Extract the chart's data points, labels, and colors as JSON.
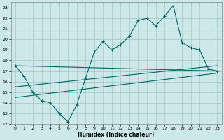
{
  "xlabel": "Humidex (Indice chaleur)",
  "bg_color": "#cce8e8",
  "grid_color": "#aacccc",
  "line_color": "#006666",
  "xlim": [
    -0.5,
    23.5
  ],
  "ylim": [
    12,
    23.5
  ],
  "xticks": [
    0,
    1,
    2,
    3,
    4,
    5,
    6,
    7,
    8,
    9,
    10,
    11,
    12,
    13,
    14,
    15,
    16,
    17,
    18,
    19,
    20,
    21,
    22,
    23
  ],
  "yticks": [
    12,
    13,
    14,
    15,
    16,
    17,
    18,
    19,
    20,
    21,
    22,
    23
  ],
  "line1_x": [
    0,
    1,
    2,
    3,
    4,
    5,
    6,
    7,
    8,
    9,
    10,
    11,
    12,
    13,
    14,
    15,
    16,
    17,
    18,
    19,
    20,
    21,
    22,
    23
  ],
  "line1_y": [
    17.5,
    16.5,
    15.0,
    14.2,
    14.0,
    13.0,
    12.2,
    13.8,
    16.3,
    18.8,
    19.8,
    19.0,
    19.5,
    20.3,
    21.8,
    22.0,
    21.3,
    22.2,
    23.2,
    19.7,
    19.2,
    19.0,
    17.2,
    17.0
  ],
  "line2_x": [
    0,
    23
  ],
  "line2_y": [
    17.5,
    17.0
  ],
  "line3_x": [
    0,
    23
  ],
  "line3_y": [
    15.5,
    17.5
  ],
  "line4_x": [
    0,
    23
  ],
  "line4_y": [
    14.5,
    16.8
  ]
}
